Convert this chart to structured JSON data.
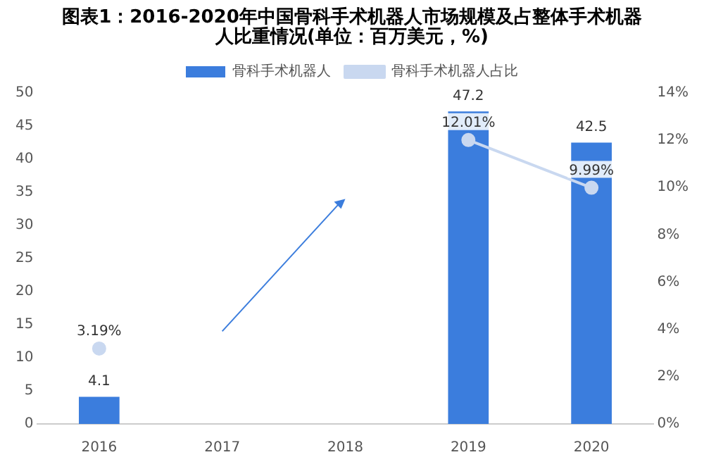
{
  "chart_data": {
    "type": "bar",
    "title": "图表1：2016-2020年中国骨科手术机器人市场规模及占整体手术机器人比重情况(单位：百万美元，%)",
    "categories": [
      "2016",
      "2017",
      "2018",
      "2019",
      "2020"
    ],
    "series": [
      {
        "name": "骨科手术机器人",
        "color": "#3b7ddd",
        "values": [
          4.1,
          null,
          null,
          47.2,
          42.5
        ],
        "value_labels": [
          "4.1",
          null,
          null,
          "47.2",
          "42.5"
        ]
      },
      {
        "name": "骨科手术机器人占比",
        "type": "line",
        "axis": "y2",
        "color": "#c9d8f0",
        "values": [
          3.19,
          null,
          null,
          12.01,
          9.99
        ],
        "value_labels": [
          "3.19%",
          null,
          null,
          "12.01%",
          "9.99%"
        ]
      }
    ],
    "ylim": [
      0,
      50
    ],
    "yticks": [
      0,
      5,
      10,
      15,
      20,
      25,
      30,
      35,
      40,
      45,
      50
    ],
    "y2lim": [
      0,
      14
    ],
    "y2ticks": [
      {
        "value": 0,
        "label": "0%"
      },
      {
        "value": 2,
        "label": "2%"
      },
      {
        "value": 4,
        "label": "4%"
      },
      {
        "value": 6,
        "label": "6%"
      },
      {
        "value": 8,
        "label": "8%"
      },
      {
        "value": 10,
        "label": "10%"
      },
      {
        "value": 12,
        "label": "12%"
      },
      {
        "value": 14,
        "label": "14%"
      }
    ],
    "legend": "top",
    "marker": "circle",
    "grid": false
  }
}
